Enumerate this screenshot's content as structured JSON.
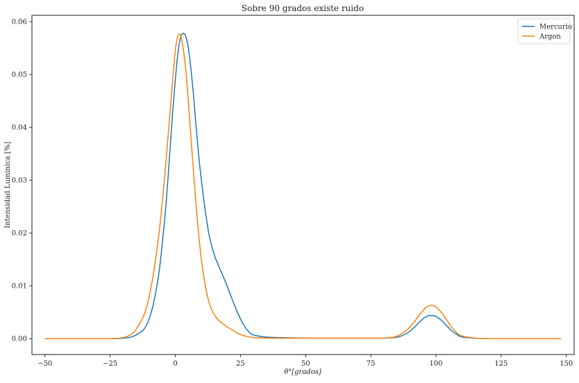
{
  "chart_data": {
    "type": "line",
    "title": "Sobre 90 grados existe ruido",
    "xlabel": "θ°[grados]",
    "ylabel": "Intensidad Luminica [%]",
    "xlim": [
      -55,
      153
    ],
    "ylim": [
      -0.003,
      0.0612
    ],
    "xticks": [
      -50,
      -25,
      0,
      25,
      50,
      75,
      100,
      125,
      150
    ],
    "xtick_labels": [
      "−50",
      "−25",
      "0",
      "25",
      "50",
      "75",
      "100",
      "125",
      "150"
    ],
    "yticks": [
      0.0,
      0.01,
      0.02,
      0.03,
      0.04,
      0.05,
      0.06
    ],
    "ytick_labels": [
      "0.00",
      "0.01",
      "0.02",
      "0.03",
      "0.04",
      "0.05",
      "0.06"
    ],
    "grid": false,
    "legend_position": "top-right",
    "series": [
      {
        "name": "Mercurio",
        "color": "#1f77b4",
        "x": [
          -50,
          -40,
          -30,
          -25,
          -20,
          -17,
          -15,
          -12,
          -10,
          -8,
          -6,
          -4,
          -3,
          -2,
          -1,
          0,
          1,
          2,
          3,
          4,
          5,
          6,
          7,
          8,
          9,
          10,
          11,
          12,
          13,
          14,
          15,
          16,
          17,
          18,
          20,
          22,
          24,
          26,
          28,
          30,
          35,
          40,
          50,
          60,
          70,
          80,
          84,
          86,
          88,
          90,
          92,
          94,
          96,
          98,
          100,
          102,
          104,
          106,
          108,
          110,
          115,
          120,
          130,
          140,
          148
        ],
        "y": [
          0.0,
          0.0,
          0.0,
          0.0,
          0.0001,
          0.0003,
          0.0007,
          0.0018,
          0.0038,
          0.0075,
          0.0135,
          0.023,
          0.029,
          0.036,
          0.043,
          0.049,
          0.054,
          0.057,
          0.0578,
          0.0572,
          0.055,
          0.051,
          0.046,
          0.04,
          0.0345,
          0.03,
          0.026,
          0.0225,
          0.0195,
          0.0175,
          0.0158,
          0.0145,
          0.0133,
          0.0122,
          0.0098,
          0.0072,
          0.0048,
          0.0028,
          0.0014,
          0.0007,
          0.0003,
          0.0002,
          0.0001,
          0.0001,
          0.0001,
          0.0001,
          0.0002,
          0.0004,
          0.0008,
          0.0014,
          0.0023,
          0.0033,
          0.0041,
          0.0044,
          0.0042,
          0.0035,
          0.0025,
          0.0015,
          0.0008,
          0.0003,
          0.0001,
          0.0,
          0.0,
          0.0,
          0.0
        ]
      },
      {
        "name": "Argon",
        "color": "#ff7f0e",
        "x": [
          -50,
          -40,
          -30,
          -25,
          -20,
          -17,
          -15,
          -12,
          -10,
          -8,
          -6,
          -4,
          -3,
          -2,
          -1,
          0,
          1,
          2,
          3,
          4,
          5,
          6,
          7,
          8,
          9,
          10,
          11,
          12,
          13,
          14,
          15,
          16,
          18,
          20,
          22,
          24,
          26,
          28,
          30,
          35,
          40,
          50,
          60,
          70,
          80,
          84,
          86,
          88,
          90,
          92,
          94,
          96,
          98,
          100,
          102,
          104,
          106,
          108,
          110,
          115,
          120,
          130,
          140,
          148
        ],
        "y": [
          0.0,
          0.0,
          0.0,
          0.0,
          0.0002,
          0.0008,
          0.0018,
          0.0045,
          0.008,
          0.0135,
          0.021,
          0.031,
          0.037,
          0.043,
          0.049,
          0.0545,
          0.0573,
          0.0574,
          0.055,
          0.051,
          0.045,
          0.038,
          0.0315,
          0.025,
          0.0195,
          0.015,
          0.0115,
          0.0088,
          0.0068,
          0.0054,
          0.0045,
          0.0038,
          0.0029,
          0.0022,
          0.0016,
          0.001,
          0.0006,
          0.0004,
          0.0002,
          0.0001,
          0.0001,
          0.0001,
          0.0001,
          0.0001,
          0.0001,
          0.0003,
          0.0007,
          0.0013,
          0.0022,
          0.0034,
          0.0047,
          0.0058,
          0.0063,
          0.006,
          0.005,
          0.0036,
          0.0022,
          0.0011,
          0.0005,
          0.0001,
          0.0,
          0.0,
          0.0,
          0.0
        ]
      }
    ]
  }
}
